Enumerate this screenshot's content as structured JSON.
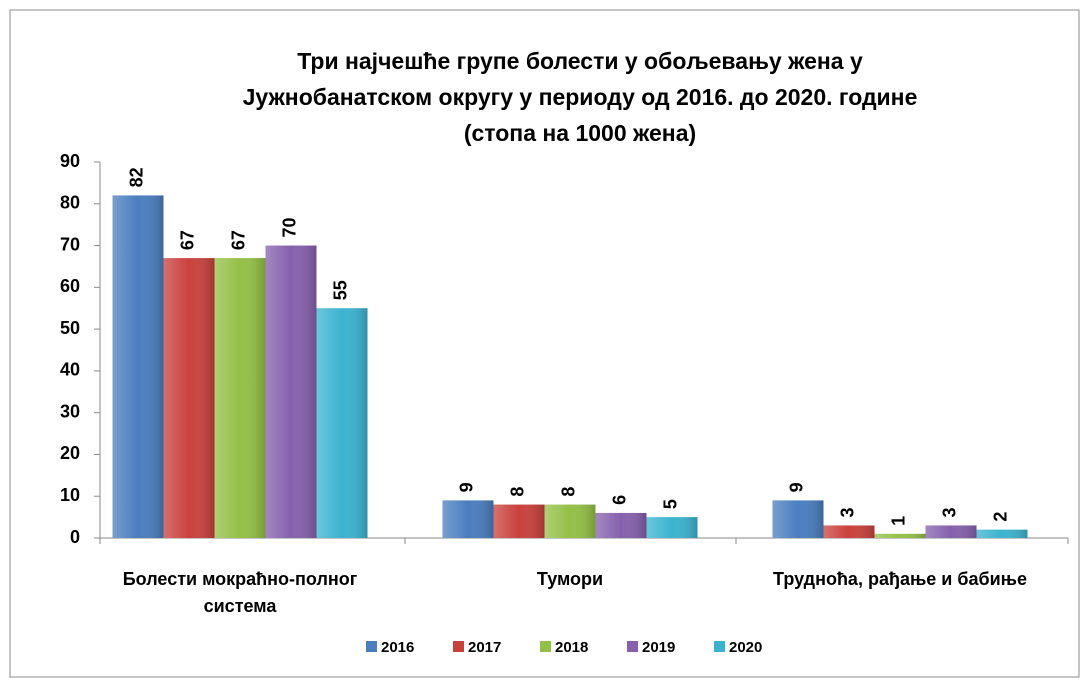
{
  "chart_data": {
    "type": "bar",
    "title": [
      "Три најчешће групе болести у обољевању жена у",
      "Јужнобанатском округу у периоду од 2016. до 2020. године",
      "(стопа на 1000 жена)"
    ],
    "categories": [
      "Болести мокраћно-полног система",
      "Тумори",
      "Трудноћа, рађање и бабиње"
    ],
    "series": [
      {
        "name": "2016",
        "color": "#4a7ebf",
        "values": [
          82,
          9,
          9
        ]
      },
      {
        "name": "2017",
        "color": "#c9413d",
        "values": [
          67,
          8,
          3
        ]
      },
      {
        "name": "2018",
        "color": "#93c046",
        "values": [
          67,
          8,
          1
        ]
      },
      {
        "name": "2019",
        "color": "#8660ad",
        "values": [
          70,
          6,
          3
        ]
      },
      {
        "name": "2020",
        "color": "#3bb3cf",
        "values": [
          55,
          5,
          2
        ]
      }
    ],
    "ylim": [
      0,
      90
    ],
    "yticks": [
      0,
      10,
      20,
      30,
      40,
      50,
      60,
      70,
      80,
      90
    ],
    "legend": "bottom"
  }
}
